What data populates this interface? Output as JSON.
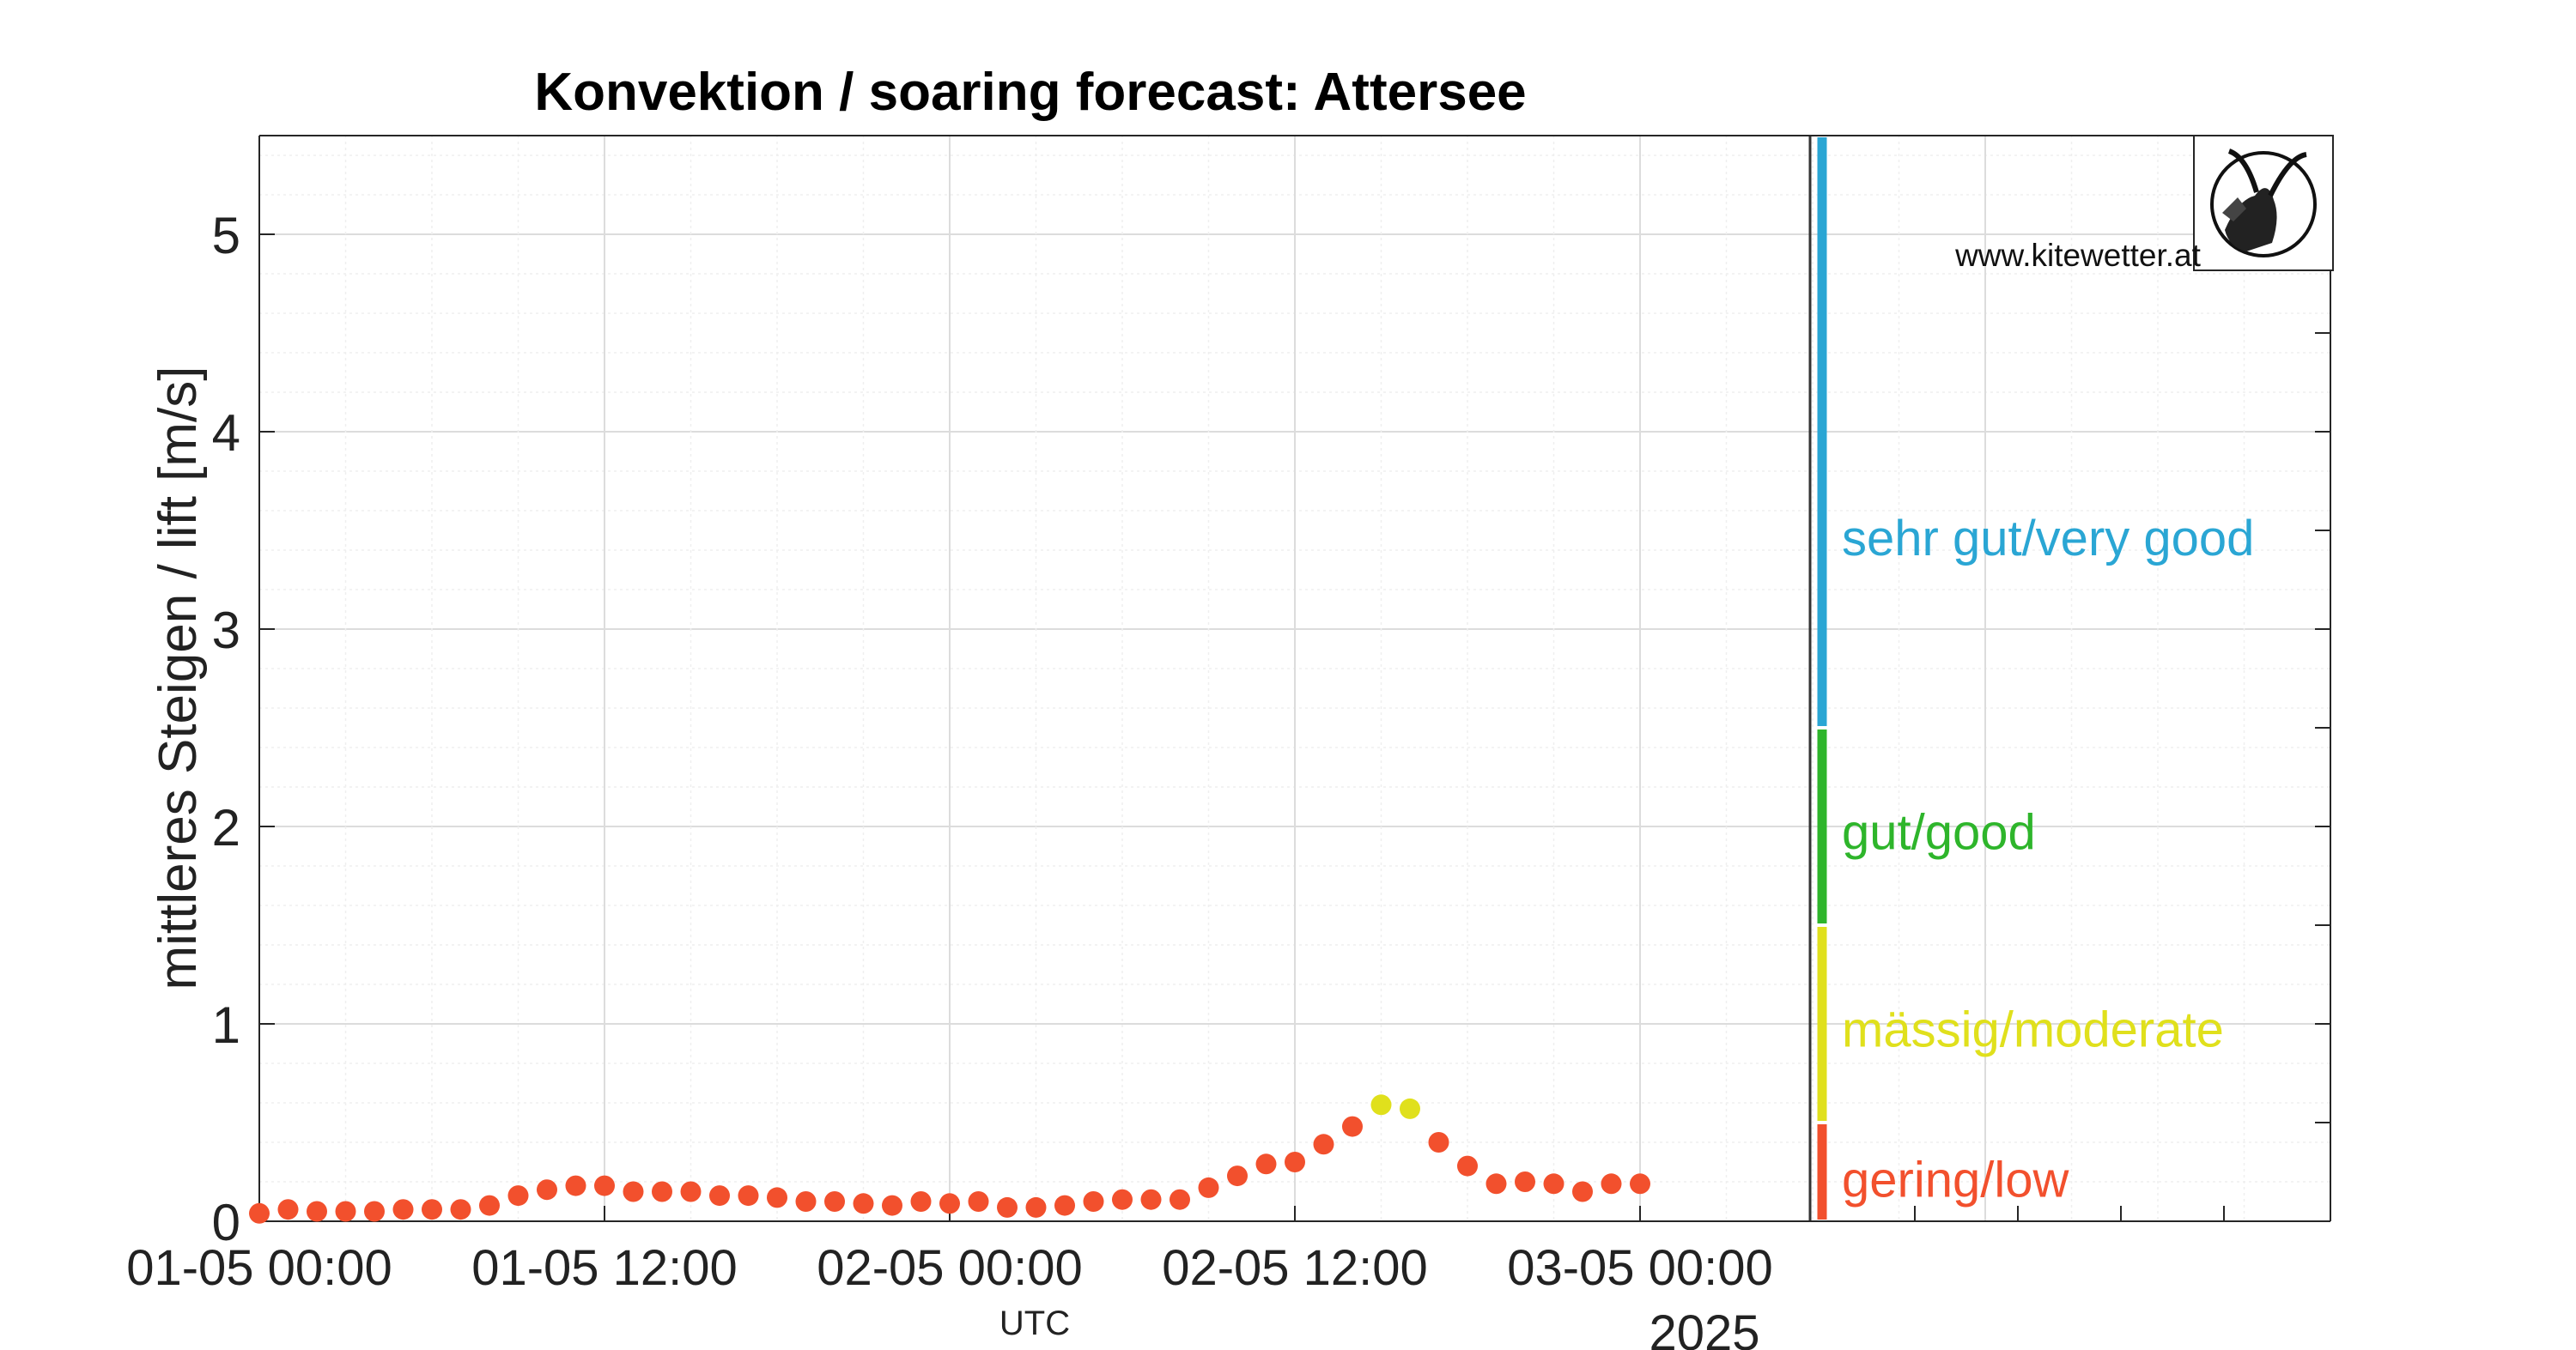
{
  "page": {
    "website": "www.kitewetter.at",
    "logo_icon": "ibex-head-icon"
  },
  "colors": {
    "very_good": "#2aa6d4",
    "good": "#2eb52b",
    "moderate": "#e0e01c",
    "low": "#f2502d",
    "grid": "#e4e4e4",
    "axis": "#262626"
  },
  "chart_data": {
    "type": "scatter",
    "title": "Konvektion / soaring forecast: Attersee",
    "ylabel": "mittleres Steigen / lift [m/s]",
    "xlabel": "UTC",
    "year_label": "2025",
    "ylim": [
      0,
      5.5
    ],
    "xlim": [
      "2025-05-01 00:00",
      "2025-05-04 00:00"
    ],
    "yticks": [
      0,
      1,
      2,
      3,
      4,
      5
    ],
    "xticks": [
      "01-05 00:00",
      "01-05 12:00",
      "02-05 00:00",
      "02-05 12:00",
      "03-05 00:00"
    ],
    "grid": true,
    "series": [
      {
        "x": [
          "2025-05-01 00:00",
          "2025-05-01 01:00",
          "2025-05-01 02:00",
          "2025-05-01 03:00",
          "2025-05-01 04:00",
          "2025-05-01 05:00",
          "2025-05-01 06:00",
          "2025-05-01 07:00",
          "2025-05-01 08:00",
          "2025-05-01 09:00",
          "2025-05-01 10:00",
          "2025-05-01 11:00",
          "2025-05-01 12:00",
          "2025-05-01 13:00",
          "2025-05-01 14:00",
          "2025-05-01 15:00",
          "2025-05-01 16:00",
          "2025-05-01 17:00",
          "2025-05-01 18:00",
          "2025-05-01 19:00",
          "2025-05-01 20:00",
          "2025-05-01 21:00",
          "2025-05-01 22:00",
          "2025-05-01 23:00",
          "2025-05-02 00:00",
          "2025-05-02 01:00",
          "2025-05-02 02:00",
          "2025-05-02 03:00",
          "2025-05-02 04:00",
          "2025-05-02 05:00",
          "2025-05-02 06:00",
          "2025-05-02 07:00",
          "2025-05-02 08:00",
          "2025-05-02 09:00",
          "2025-05-02 10:00",
          "2025-05-02 11:00",
          "2025-05-02 12:00",
          "2025-05-02 13:00",
          "2025-05-02 14:00",
          "2025-05-02 15:00",
          "2025-05-02 16:00",
          "2025-05-02 17:00",
          "2025-05-02 18:00",
          "2025-05-02 19:00",
          "2025-05-02 20:00",
          "2025-05-02 21:00",
          "2025-05-02 22:00",
          "2025-05-02 23:00",
          "2025-05-03 00:00"
        ],
        "values": [
          0.04,
          0.06,
          0.05,
          0.05,
          0.05,
          0.06,
          0.06,
          0.06,
          0.08,
          0.13,
          0.16,
          0.18,
          0.18,
          0.15,
          0.15,
          0.15,
          0.13,
          0.13,
          0.12,
          0.1,
          0.1,
          0.09,
          0.08,
          0.1,
          0.09,
          0.1,
          0.07,
          0.07,
          0.08,
          0.1,
          0.11,
          0.11,
          0.11,
          0.17,
          0.23,
          0.29,
          0.3,
          0.39,
          0.48,
          0.59,
          0.57,
          0.4,
          0.28,
          0.19,
          0.2,
          0.19,
          0.15,
          0.19,
          0.19
        ]
      }
    ],
    "classes": [
      {
        "label": "sehr gut/very good",
        "from": 2.5,
        "to": 5.5,
        "color": "#2aa6d4"
      },
      {
        "label": "gut/good",
        "from": 1.5,
        "to": 2.5,
        "color": "#2eb52b"
      },
      {
        "label": "mässig/moderate",
        "from": 0.5,
        "to": 1.5,
        "color": "#e0e01c"
      },
      {
        "label": "gering/low",
        "from": 0,
        "to": 0.5,
        "color": "#f2502d"
      }
    ]
  }
}
